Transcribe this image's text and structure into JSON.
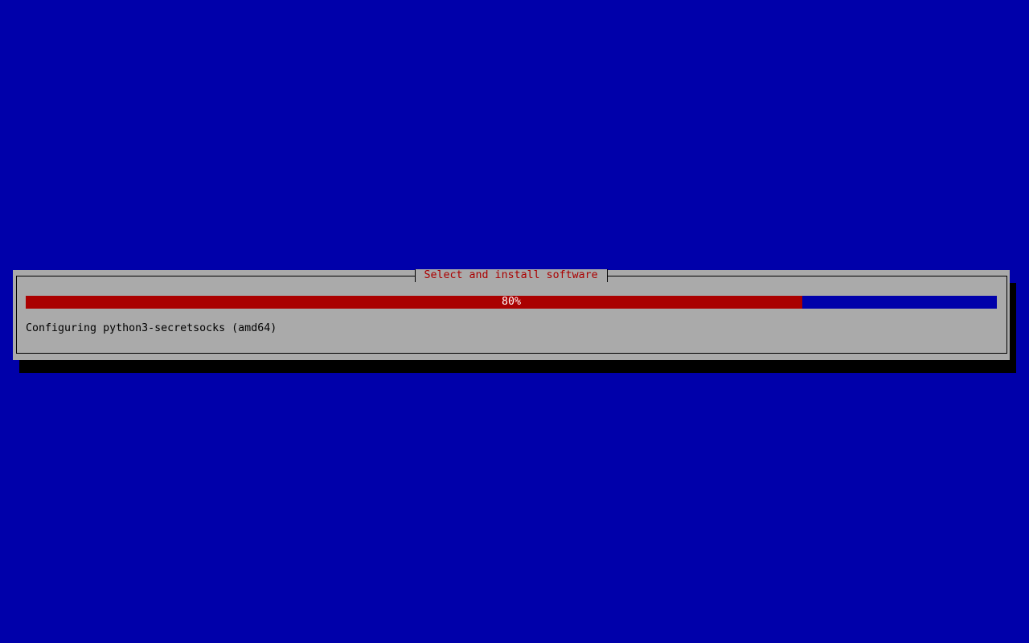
{
  "dialog": {
    "title": "Select and install software",
    "progress_percent": 80,
    "progress_label": "80%",
    "status_text": "Configuring python3-secretsocks (amd64)"
  },
  "colors": {
    "background": "#0000aa",
    "dialog": "#aaaaaa",
    "progress_fill": "#aa0000",
    "title_text": "#aa0000"
  }
}
